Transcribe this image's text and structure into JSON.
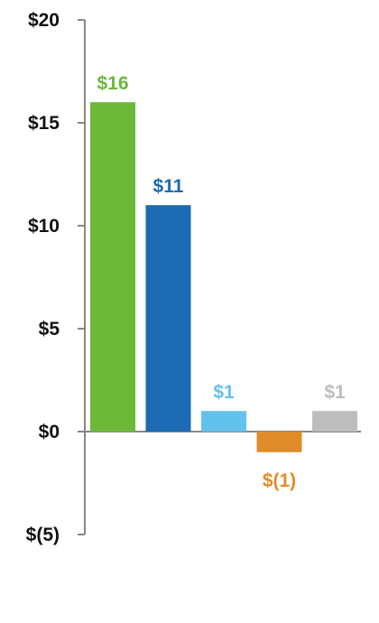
{
  "chart_data": {
    "type": "bar",
    "title": "",
    "xlabel": "",
    "ylabel": "",
    "ylim": [
      -5,
      20
    ],
    "yticks": [
      20,
      15,
      10,
      5,
      0,
      -5
    ],
    "ytick_labels": [
      "$20",
      "$15",
      "$10",
      "$5",
      "$0",
      "$(5)"
    ],
    "grid": false,
    "legend": "none",
    "categories": [
      "",
      "",
      "",
      "",
      ""
    ],
    "values": [
      16,
      11,
      1,
      -1,
      1
    ],
    "value_labels": [
      "$16",
      "$11",
      "$1",
      "$(1)",
      "$1"
    ],
    "colors": [
      "#6cb93a",
      "#1d6bb5",
      "#63c1ee",
      "#e08c2b",
      "#bdbdbd"
    ],
    "axis_color": "#888888"
  }
}
